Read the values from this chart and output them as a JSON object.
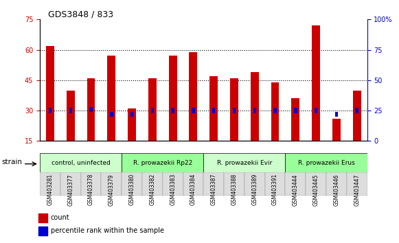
{
  "title": "GDS3848 / 833",
  "samples": [
    "GSM403281",
    "GSM403377",
    "GSM403378",
    "GSM403379",
    "GSM403380",
    "GSM403382",
    "GSM403383",
    "GSM403384",
    "GSM403387",
    "GSM403388",
    "GSM403389",
    "GSM403391",
    "GSM403444",
    "GSM403445",
    "GSM403446",
    "GSM403447"
  ],
  "counts": [
    62,
    40,
    46,
    57,
    31,
    46,
    57,
    59,
    47,
    46,
    49,
    44,
    36,
    72,
    26,
    40
  ],
  "percentiles": [
    25,
    25,
    26,
    22,
    22,
    25,
    25,
    25,
    25,
    25,
    25,
    25,
    25,
    25,
    22,
    25
  ],
  "red_color": "#cc0000",
  "blue_color": "#0000cc",
  "ylim_left": [
    15,
    75
  ],
  "ylim_right": [
    0,
    100
  ],
  "yticks_left": [
    15,
    30,
    45,
    60,
    75
  ],
  "yticks_right": [
    0,
    25,
    50,
    75,
    100
  ],
  "groups": [
    {
      "label": "control, uninfected",
      "indices": [
        0,
        1,
        2,
        3
      ],
      "color": "#ccffcc"
    },
    {
      "label": "R. prowazekii Rp22",
      "indices": [
        4,
        5,
        6,
        7
      ],
      "color": "#99ff99"
    },
    {
      "label": "R. prowazekii Evir",
      "indices": [
        8,
        9,
        10,
        11
      ],
      "color": "#ccffcc"
    },
    {
      "label": "R. prowazekii Erus",
      "indices": [
        12,
        13,
        14,
        15
      ],
      "color": "#99ff99"
    }
  ],
  "legend_count_label": "count",
  "legend_percentile_label": "percentile rank within the sample",
  "strain_label": "strain",
  "xlabel_rotation": 90,
  "grid_color": "#000000",
  "background_color": "#ffffff",
  "bar_width": 0.4,
  "blue_bar_width": 0.15
}
